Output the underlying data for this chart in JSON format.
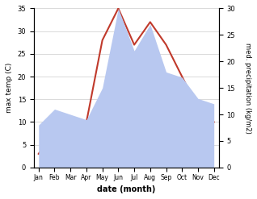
{
  "months": [
    "Jan",
    "Feb",
    "Mar",
    "Apr",
    "May",
    "Jun",
    "Jul",
    "Aug",
    "Sep",
    "Oct",
    "Nov",
    "Dec"
  ],
  "temp": [
    3,
    8,
    11,
    10,
    28,
    35,
    27,
    32,
    27,
    20,
    13,
    10
  ],
  "precip": [
    8,
    11,
    10,
    9,
    15,
    30,
    22,
    27,
    18,
    17,
    13,
    12
  ],
  "xlabel": "date (month)",
  "ylabel_left": "max temp (C)",
  "ylabel_right": "med. precipitation (kg/m2)",
  "ylim_left": [
    0,
    35
  ],
  "ylim_right": [
    0,
    30
  ],
  "yticks_left": [
    0,
    5,
    10,
    15,
    20,
    25,
    30,
    35
  ],
  "yticks_right": [
    0,
    5,
    10,
    15,
    20,
    25,
    30
  ],
  "temp_color": "#c0392b",
  "precip_fill_color": "#b8c8f0",
  "grid_color": "#cccccc"
}
